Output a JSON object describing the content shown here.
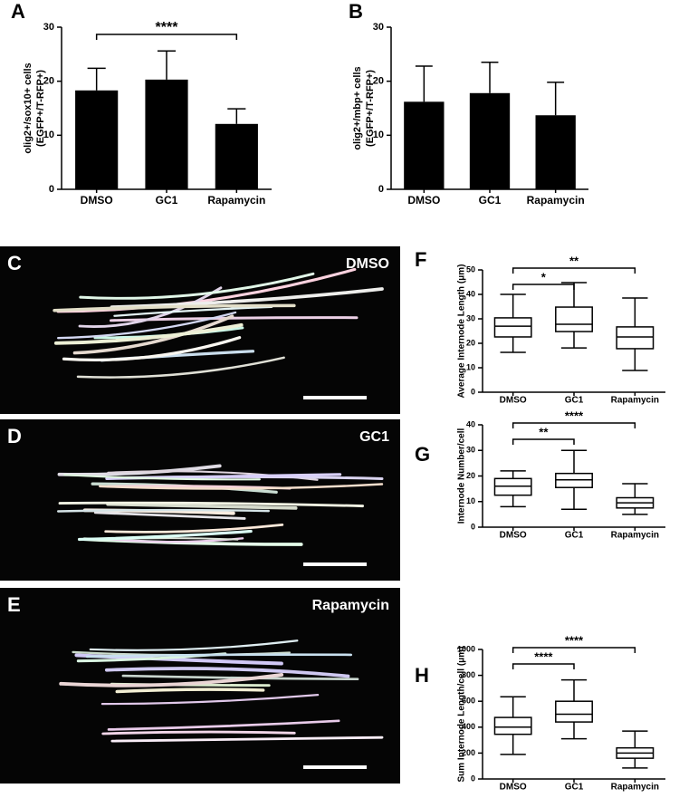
{
  "chart_data": [
    {
      "type": "bar",
      "panel": "A",
      "ylabel": [
        "olig2+/sox10+ cells",
        "(EGFP+/T-RFP+)"
      ],
      "categories": [
        "DMSO",
        "GC1",
        "Rapamycin"
      ],
      "values": [
        18.3,
        20.3,
        12.1
      ],
      "errors": [
        4.1,
        5.3,
        2.8
      ],
      "color": "#000000",
      "ylim": [
        0,
        30
      ],
      "yticks": [
        0,
        10,
        20,
        30
      ],
      "annotations": [
        "****"
      ]
    },
    {
      "type": "bar",
      "panel": "B",
      "ylabel": [
        "olig2+/mbp+ cells",
        "(EGFP+/T-RFP+)"
      ],
      "categories": [
        "DMSO",
        "GC1",
        "Rapamycin"
      ],
      "values": [
        16.2,
        17.8,
        13.7
      ],
      "errors": [
        6.6,
        5.7,
        6.1
      ],
      "color": "#000000",
      "ylim": [
        0,
        30
      ],
      "yticks": [
        0,
        10,
        20,
        30
      ],
      "annotations": []
    },
    {
      "type": "box",
      "panel": "F",
      "ylabel": [
        "Average Internode Length (μm)"
      ],
      "categories": [
        "DMSO",
        "GC1",
        "Rapamycin"
      ],
      "boxes": [
        {
          "min": 16.3,
          "q1": 22.6,
          "median": 27,
          "q3": 30.4,
          "max": 40
        },
        {
          "min": 18.1,
          "q1": 24.8,
          "median": 27.8,
          "q3": 34.8,
          "max": 44.8
        },
        {
          "min": 8.9,
          "q1": 17.8,
          "median": 22.6,
          "q3": 26.7,
          "max": 38.5
        }
      ],
      "ylim": [
        0,
        50
      ],
      "yticks": [
        0,
        10,
        20,
        30,
        40,
        50
      ],
      "annotations": [
        "*",
        "**"
      ]
    },
    {
      "type": "box",
      "panel": "G",
      "ylabel": [
        "Internode Number/cell"
      ],
      "categories": [
        "DMSO",
        "GC1",
        "Rapamycin"
      ],
      "boxes": [
        {
          "min": 8,
          "q1": 12.5,
          "median": 16,
          "q3": 19,
          "max": 22
        },
        {
          "min": 7,
          "q1": 15.5,
          "median": 18.5,
          "q3": 21,
          "max": 30
        },
        {
          "min": 5,
          "q1": 7.5,
          "median": 9.5,
          "q3": 11.5,
          "max": 17
        }
      ],
      "ylim": [
        0,
        40
      ],
      "yticks": [
        0,
        10,
        20,
        30,
        40
      ],
      "annotations": [
        "**",
        "****"
      ]
    },
    {
      "type": "box",
      "panel": "H",
      "ylabel": [
        "Sum Internode Length/cell (μm)"
      ],
      "categories": [
        "DMSO",
        "GC1",
        "Rapamycin"
      ],
      "boxes": [
        {
          "min": 190,
          "q1": 345,
          "median": 400,
          "q3": 475,
          "max": 635
        },
        {
          "min": 310,
          "q1": 440,
          "median": 500,
          "q3": 600,
          "max": 765
        },
        {
          "min": 85,
          "q1": 160,
          "median": 200,
          "q3": 240,
          "max": 370
        }
      ],
      "ylim": [
        0,
        1000
      ],
      "yticks": [
        0,
        200,
        400,
        600,
        800,
        1000
      ],
      "annotations": [
        "****",
        "****"
      ]
    }
  ],
  "images": [
    {
      "letter": "C",
      "label": "DMSO"
    },
    {
      "letter": "D",
      "label": "GC1"
    },
    {
      "letter": "E",
      "label": "Rapamycin"
    }
  ]
}
